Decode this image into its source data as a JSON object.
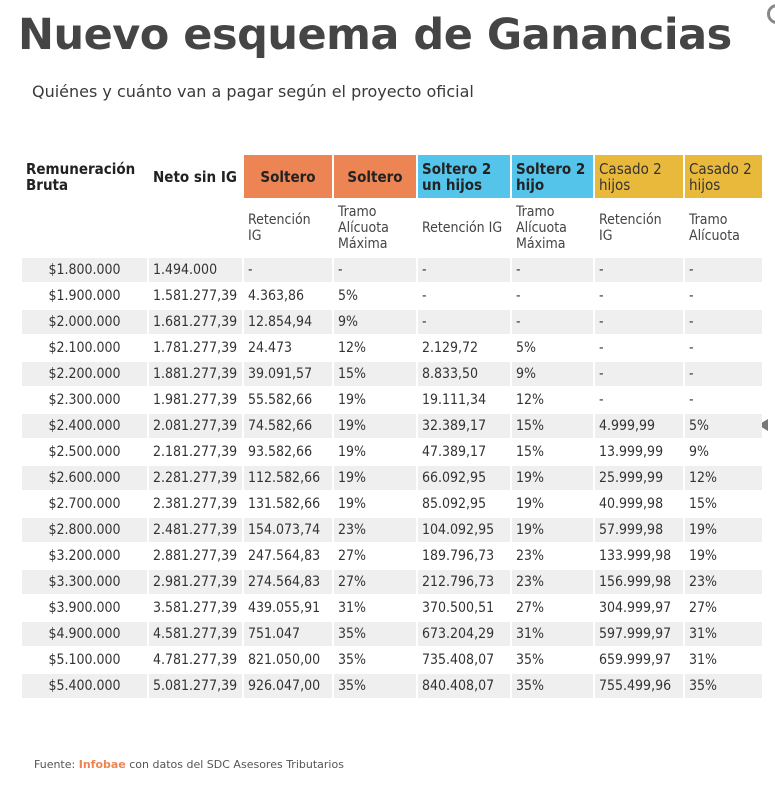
{
  "header": {
    "title": "Nuevo esquema de Ganancias",
    "subtitle": "Quiénes y cuánto van a pagar según el proyecto oficial"
  },
  "colors": {
    "soltero": "#ec8553",
    "soltero_2_hijos": "#55c4ea",
    "casado_2_hijos": "#e9b93c",
    "row_stripe": "#efefef"
  },
  "chart_data": {
    "type": "table",
    "columns": [
      "Remuneración Bruta",
      "Neto sin IG",
      "Soltero",
      "Soltero",
      "Soltero 2 un hijos",
      "Soltero 2 hijo",
      "Casado 2 hijos",
      "Casado 2 hijos"
    ],
    "subheaders": [
      "",
      "",
      "Retención IG",
      "Tramo Alícuota Máxima",
      "Retención IG",
      "Tramo Alícuota Máxima",
      "Retención IG",
      "Tramo Alícuota"
    ],
    "rows": [
      [
        "$1.800.000",
        "1.494.000",
        "-",
        "-",
        "-",
        "-",
        "-",
        "-"
      ],
      [
        "$1.900.000",
        "1.581.277,39",
        "4.363,86",
        "5%",
        "-",
        "-",
        "-",
        "-"
      ],
      [
        "$2.000.000",
        "1.681.277,39",
        "12.854,94",
        "9%",
        "-",
        "-",
        "-",
        "-"
      ],
      [
        "$2.100.000",
        "1.781.277,39",
        "24.473",
        "12%",
        "2.129,72",
        "5%",
        "-",
        "-"
      ],
      [
        "$2.200.000",
        "1.881.277,39",
        "39.091,57",
        "15%",
        "8.833,50",
        "9%",
        "-",
        "-"
      ],
      [
        "$2.300.000",
        "1.981.277,39",
        "55.582,66",
        "19%",
        "19.111,34",
        "12%",
        "-",
        "-"
      ],
      [
        "$2.400.000",
        "2.081.277,39",
        "74.582,66",
        "19%",
        "32.389,17",
        "15%",
        "4.999,99",
        "5%"
      ],
      [
        "$2.500.000",
        "2.181.277,39",
        "93.582,66",
        "19%",
        "47.389,17",
        "15%",
        "13.999,99",
        "9%"
      ],
      [
        "$2.600.000",
        "2.281.277,39",
        "112.582,66",
        "19%",
        "66.092,95",
        "19%",
        "25.999,99",
        "12%"
      ],
      [
        "$2.700.000",
        "2.381.277,39",
        "131.582,66",
        "19%",
        "85.092,95",
        "19%",
        "40.999,98",
        "15%"
      ],
      [
        "$2.800.000",
        "2.481.277,39",
        "154.073,74",
        "23%",
        "104.092,95",
        "19%",
        "57.999,98",
        "19%"
      ],
      [
        "$3.200.000",
        "2.881.277,39",
        "247.564,83",
        "27%",
        "189.796,73",
        "23%",
        "133.999,98",
        "19%"
      ],
      [
        "$3.300.000",
        "2.981.277,39",
        "274.564,83",
        "27%",
        "212.796,73",
        "23%",
        "156.999,98",
        "23%"
      ],
      [
        "$3.900.000",
        "3.581.277,39",
        "439.055,91",
        "31%",
        "370.500,51",
        "27%",
        "304.999,97",
        "27%"
      ],
      [
        "$4.900.000",
        "4.581.277,39",
        "751.047",
        "35%",
        "673.204,29",
        "31%",
        "597.999,97",
        "31%"
      ],
      [
        "$5.100.000",
        "4.781.277,39",
        "821.050,00",
        "35%",
        "735.408,07",
        "35%",
        "659.999,97",
        "31%"
      ],
      [
        "$5.400.000",
        "5.081.277,39",
        "926.047,00",
        "35%",
        "840.408,07",
        "35%",
        "755.499,96",
        "35%"
      ]
    ]
  },
  "footer": {
    "prefix": "Fuente: ",
    "brand": "Infobae",
    "suffix": " con datos del SDC Asesores Tributarios"
  }
}
